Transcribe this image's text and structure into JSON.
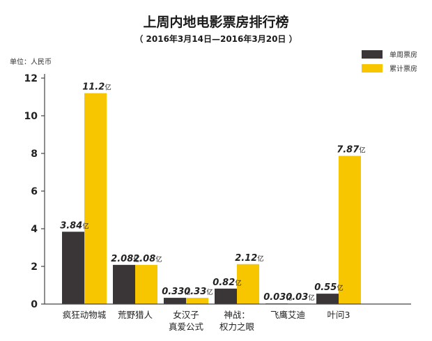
{
  "chart_data": {
    "type": "bar",
    "title": "上周内地电影票房排行榜",
    "subtitle": "（ 2016年3月14日—2016年3月20日 ）",
    "unit_label": "单位：人民币",
    "value_suffix": "亿",
    "categories": [
      [
        "疯狂动物城"
      ],
      [
        "荒野猎人"
      ],
      [
        "女汉子",
        "真爱公式"
      ],
      [
        "神战：",
        "权力之眼"
      ],
      [
        "飞鹰艾迪"
      ],
      [
        "叶问3"
      ]
    ],
    "series": [
      {
        "name": "单周票房",
        "color": "#3a3536",
        "values": [
          3.84,
          2.08,
          0.33,
          0.82,
          0.03,
          0.55
        ]
      },
      {
        "name": "累计票房",
        "color": "#f7c600",
        "values": [
          11.2,
          2.08,
          0.33,
          2.12,
          0.03,
          7.87
        ]
      }
    ],
    "value_labels": [
      [
        "3.84",
        "2.08",
        "0.33",
        "0.82",
        "0.03",
        "0.55"
      ],
      [
        "11.2",
        "2.08",
        "0.33",
        "2.12",
        "0.03",
        "7.87"
      ]
    ],
    "ylim": [
      0,
      12
    ],
    "yticks": [
      0,
      2,
      4,
      6,
      8,
      10,
      12
    ],
    "grid": false,
    "legend_position": "top-right"
  }
}
